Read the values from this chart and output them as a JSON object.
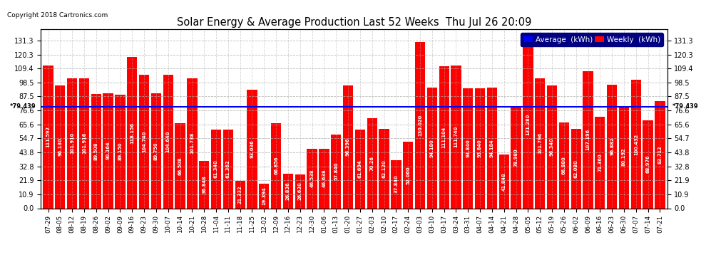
{
  "title": "Solar Energy & Average Production Last 52 Weeks  Thu Jul 26 20:09",
  "copyright": "Copyright 2018 Cartronics.com",
  "average_value": 79.439,
  "legend_labels": [
    "Average  (kWh)",
    "Weekly  (kWh)"
  ],
  "legend_colors": [
    "#0000ff",
    "#ff0000"
  ],
  "bar_color": "#ff0000",
  "avg_line_color": "#0000ff",
  "background_color": "#ffffff",
  "plot_bg_color": "#ffffff",
  "grid_color": "#aaaaaa",
  "yticks": [
    0.0,
    10.9,
    21.9,
    32.8,
    43.8,
    54.7,
    65.6,
    76.6,
    87.5,
    98.5,
    109.4,
    120.3,
    131.3
  ],
  "categories": [
    "07-29",
    "08-05",
    "08-12",
    "08-19",
    "08-26",
    "09-02",
    "09-09",
    "09-16",
    "09-23",
    "09-30",
    "10-07",
    "10-14",
    "10-21",
    "10-28",
    "11-04",
    "11-11",
    "11-18",
    "11-25",
    "12-02",
    "12-09",
    "12-16",
    "12-23",
    "12-30",
    "01-06",
    "01-13",
    "01-20",
    "01-27",
    "02-03",
    "02-10",
    "02-17",
    "02-24",
    "03-03",
    "03-10",
    "03-17",
    "03-24",
    "03-31",
    "04-07",
    "04-14",
    "04-21",
    "04-28",
    "05-05",
    "05-12",
    "05-19",
    "05-26",
    "06-02",
    "06-09",
    "06-16",
    "06-23",
    "06-30",
    "07-07",
    "07-14",
    "07-21"
  ],
  "values": [
    111.592,
    96.13,
    101.91,
    101.916,
    89.508,
    90.164,
    89.15,
    118.156,
    104.74,
    89.75,
    104.64,
    66.508,
    101.738,
    36.848,
    61.34,
    61.362,
    21.332,
    93.036,
    19.394,
    66.856,
    26.836,
    26.63,
    46.538,
    46.638,
    57.84,
    96.396,
    61.694,
    70.26,
    62.12,
    37.84,
    52.06,
    130.02,
    94.18,
    111.104,
    111.74,
    93.84,
    93.84,
    94.184,
    41.848,
    78.98,
    131.28,
    101.796,
    96.34,
    66.88,
    62.08,
    107.196,
    71.36,
    96.882,
    80.192,
    100.432,
    68.976,
    83.712
  ],
  "bar_labels": [
    "111.592",
    "96.130",
    "101.910",
    "101.916",
    "89.508",
    "90.164",
    "89.150",
    "118.156",
    "104.740",
    "89.750",
    "104.640",
    "66.508",
    "101.738",
    "36.848",
    "61.340",
    "61.362",
    "21.332",
    "93.036",
    "19.394",
    "66.856",
    "26.836",
    "26.630",
    "46.538",
    "46.638",
    "57.840",
    "96.396",
    "61.694",
    "70.26",
    "62.120",
    "37.840",
    "52.060",
    "130.020",
    "94.180",
    "111.104",
    "111.740",
    "93.840",
    "93.840",
    "94.184",
    "41.848",
    "78.980",
    "131.280",
    "101.796",
    "96.340",
    "66.880",
    "62.080",
    "107.196",
    "71.360",
    "96.882",
    "80.192",
    "100.432",
    "68.976",
    "83.712"
  ]
}
